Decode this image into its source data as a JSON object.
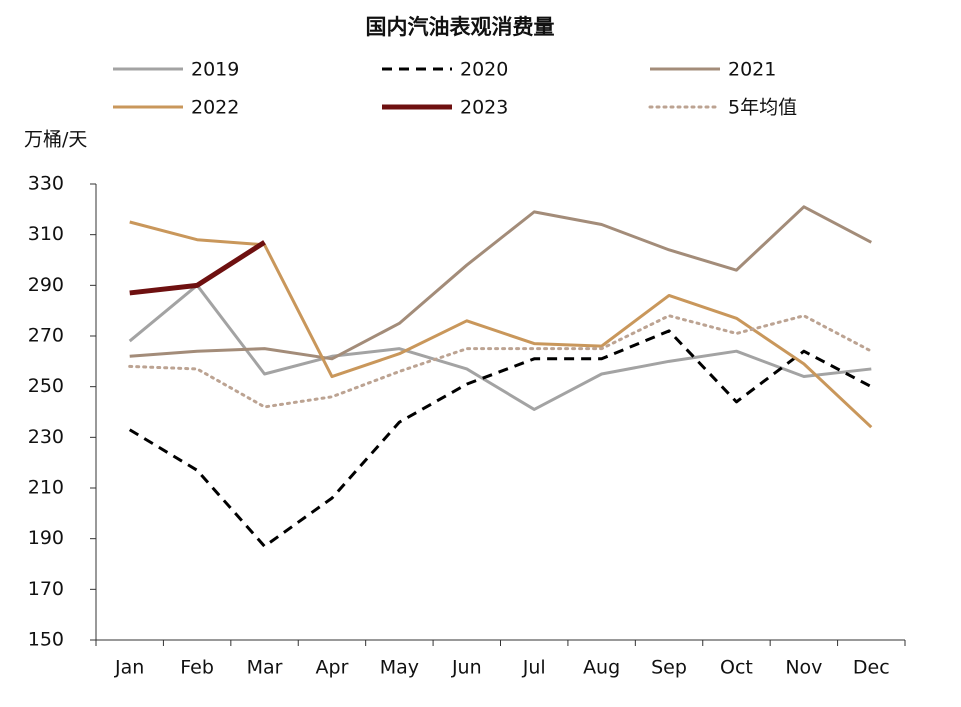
{
  "chart_data": {
    "type": "line",
    "title": "国内汽油表观消费量",
    "y_label": "万桶/天",
    "categories": [
      "Jan",
      "Feb",
      "Mar",
      "Apr",
      "May",
      "Jun",
      "Jul",
      "Aug",
      "Sep",
      "Oct",
      "Nov",
      "Dec"
    ],
    "ylim": [
      150,
      330
    ],
    "yticks": [
      150,
      170,
      190,
      210,
      230,
      250,
      270,
      290,
      310,
      330
    ],
    "grid": false,
    "series": [
      {
        "name": "2019",
        "color": "#a3a3a3",
        "style": "solid",
        "values": [
          268,
          290,
          255,
          262,
          265,
          257,
          241,
          255,
          260,
          264,
          254,
          257
        ]
      },
      {
        "name": "2020",
        "color": "#000000",
        "style": "dashed",
        "values": [
          233,
          217,
          187,
          206,
          236,
          251,
          261,
          261,
          272,
          244,
          264,
          250
        ]
      },
      {
        "name": "2021",
        "color": "#a38c79",
        "style": "solid",
        "values": [
          262,
          264,
          265,
          261,
          275,
          298,
          319,
          314,
          304,
          296,
          321,
          307
        ]
      },
      {
        "name": "2022",
        "color": "#c9975b",
        "style": "solid",
        "values": [
          315,
          308,
          306,
          254,
          263,
          276,
          267,
          266,
          286,
          277,
          259,
          234
        ]
      },
      {
        "name": "2023",
        "color": "#6e1010",
        "style": "thick",
        "values": [
          287,
          290,
          307,
          null,
          null,
          null,
          null,
          null,
          null,
          null,
          null,
          null
        ]
      },
      {
        "name": "5年均值",
        "color": "#bca392",
        "style": "dotted",
        "values": [
          258,
          257,
          242,
          246,
          256,
          265,
          265,
          265,
          278,
          271,
          278,
          264
        ]
      }
    ]
  }
}
